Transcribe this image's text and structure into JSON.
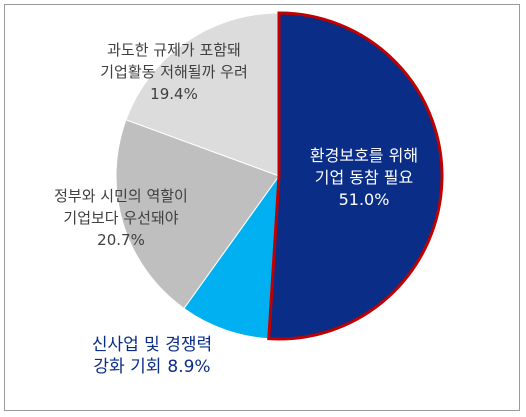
{
  "chart_data": {
    "type": "pie",
    "categories": [
      "환경보호를 위해\n기업 동참 필요",
      "신사업 및 경쟁력\n강화 기회",
      "정부와 시민의 역할이\n기업보다 우선돼야",
      "과도한 규제가 포함돼\n기업활동 저해될까 우려"
    ],
    "values": [
      51.0,
      8.9,
      20.7,
      19.4
    ],
    "value_labels": [
      "51.0%",
      "8.9%",
      "20.7%",
      "19.4%"
    ],
    "colors": [
      "#0a2d87",
      "#00b0f0",
      "#bfbfbf",
      "#dcdcdc"
    ]
  }
}
